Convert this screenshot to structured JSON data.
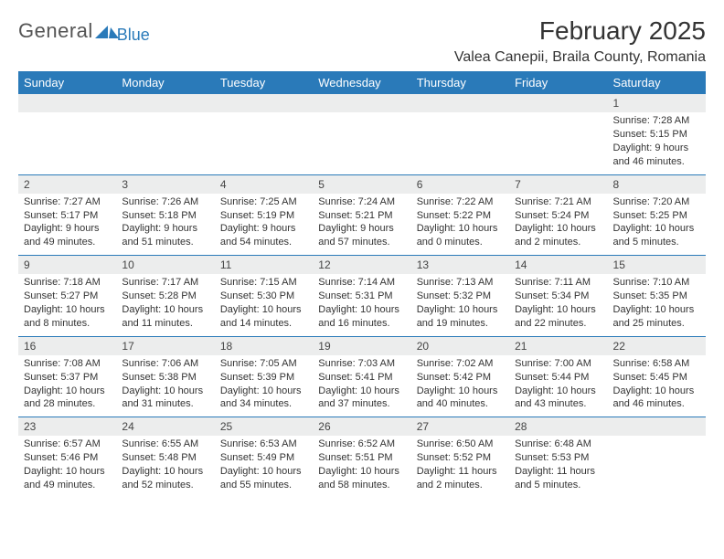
{
  "logo": {
    "general": "General",
    "blue": "Blue"
  },
  "title": "February 2025",
  "location": "Valea Canepii, Braila County, Romania",
  "colors": {
    "accent": "#2a7ab9",
    "headerText": "#ffffff",
    "dayBg": "#eceded",
    "text": "#333333"
  },
  "dayHeaders": [
    "Sunday",
    "Monday",
    "Tuesday",
    "Wednesday",
    "Thursday",
    "Friday",
    "Saturday"
  ],
  "weeks": [
    [
      null,
      null,
      null,
      null,
      null,
      null,
      {
        "n": "1",
        "sr": "Sunrise: 7:28 AM",
        "ss": "Sunset: 5:15 PM",
        "dl": "Daylight: 9 hours and 46 minutes."
      }
    ],
    [
      {
        "n": "2",
        "sr": "Sunrise: 7:27 AM",
        "ss": "Sunset: 5:17 PM",
        "dl": "Daylight: 9 hours and 49 minutes."
      },
      {
        "n": "3",
        "sr": "Sunrise: 7:26 AM",
        "ss": "Sunset: 5:18 PM",
        "dl": "Daylight: 9 hours and 51 minutes."
      },
      {
        "n": "4",
        "sr": "Sunrise: 7:25 AM",
        "ss": "Sunset: 5:19 PM",
        "dl": "Daylight: 9 hours and 54 minutes."
      },
      {
        "n": "5",
        "sr": "Sunrise: 7:24 AM",
        "ss": "Sunset: 5:21 PM",
        "dl": "Daylight: 9 hours and 57 minutes."
      },
      {
        "n": "6",
        "sr": "Sunrise: 7:22 AM",
        "ss": "Sunset: 5:22 PM",
        "dl": "Daylight: 10 hours and 0 minutes."
      },
      {
        "n": "7",
        "sr": "Sunrise: 7:21 AM",
        "ss": "Sunset: 5:24 PM",
        "dl": "Daylight: 10 hours and 2 minutes."
      },
      {
        "n": "8",
        "sr": "Sunrise: 7:20 AM",
        "ss": "Sunset: 5:25 PM",
        "dl": "Daylight: 10 hours and 5 minutes."
      }
    ],
    [
      {
        "n": "9",
        "sr": "Sunrise: 7:18 AM",
        "ss": "Sunset: 5:27 PM",
        "dl": "Daylight: 10 hours and 8 minutes."
      },
      {
        "n": "10",
        "sr": "Sunrise: 7:17 AM",
        "ss": "Sunset: 5:28 PM",
        "dl": "Daylight: 10 hours and 11 minutes."
      },
      {
        "n": "11",
        "sr": "Sunrise: 7:15 AM",
        "ss": "Sunset: 5:30 PM",
        "dl": "Daylight: 10 hours and 14 minutes."
      },
      {
        "n": "12",
        "sr": "Sunrise: 7:14 AM",
        "ss": "Sunset: 5:31 PM",
        "dl": "Daylight: 10 hours and 16 minutes."
      },
      {
        "n": "13",
        "sr": "Sunrise: 7:13 AM",
        "ss": "Sunset: 5:32 PM",
        "dl": "Daylight: 10 hours and 19 minutes."
      },
      {
        "n": "14",
        "sr": "Sunrise: 7:11 AM",
        "ss": "Sunset: 5:34 PM",
        "dl": "Daylight: 10 hours and 22 minutes."
      },
      {
        "n": "15",
        "sr": "Sunrise: 7:10 AM",
        "ss": "Sunset: 5:35 PM",
        "dl": "Daylight: 10 hours and 25 minutes."
      }
    ],
    [
      {
        "n": "16",
        "sr": "Sunrise: 7:08 AM",
        "ss": "Sunset: 5:37 PM",
        "dl": "Daylight: 10 hours and 28 minutes."
      },
      {
        "n": "17",
        "sr": "Sunrise: 7:06 AM",
        "ss": "Sunset: 5:38 PM",
        "dl": "Daylight: 10 hours and 31 minutes."
      },
      {
        "n": "18",
        "sr": "Sunrise: 7:05 AM",
        "ss": "Sunset: 5:39 PM",
        "dl": "Daylight: 10 hours and 34 minutes."
      },
      {
        "n": "19",
        "sr": "Sunrise: 7:03 AM",
        "ss": "Sunset: 5:41 PM",
        "dl": "Daylight: 10 hours and 37 minutes."
      },
      {
        "n": "20",
        "sr": "Sunrise: 7:02 AM",
        "ss": "Sunset: 5:42 PM",
        "dl": "Daylight: 10 hours and 40 minutes."
      },
      {
        "n": "21",
        "sr": "Sunrise: 7:00 AM",
        "ss": "Sunset: 5:44 PM",
        "dl": "Daylight: 10 hours and 43 minutes."
      },
      {
        "n": "22",
        "sr": "Sunrise: 6:58 AM",
        "ss": "Sunset: 5:45 PM",
        "dl": "Daylight: 10 hours and 46 minutes."
      }
    ],
    [
      {
        "n": "23",
        "sr": "Sunrise: 6:57 AM",
        "ss": "Sunset: 5:46 PM",
        "dl": "Daylight: 10 hours and 49 minutes."
      },
      {
        "n": "24",
        "sr": "Sunrise: 6:55 AM",
        "ss": "Sunset: 5:48 PM",
        "dl": "Daylight: 10 hours and 52 minutes."
      },
      {
        "n": "25",
        "sr": "Sunrise: 6:53 AM",
        "ss": "Sunset: 5:49 PM",
        "dl": "Daylight: 10 hours and 55 minutes."
      },
      {
        "n": "26",
        "sr": "Sunrise: 6:52 AM",
        "ss": "Sunset: 5:51 PM",
        "dl": "Daylight: 10 hours and 58 minutes."
      },
      {
        "n": "27",
        "sr": "Sunrise: 6:50 AM",
        "ss": "Sunset: 5:52 PM",
        "dl": "Daylight: 11 hours and 2 minutes."
      },
      {
        "n": "28",
        "sr": "Sunrise: 6:48 AM",
        "ss": "Sunset: 5:53 PM",
        "dl": "Daylight: 11 hours and 5 minutes."
      },
      null
    ]
  ]
}
